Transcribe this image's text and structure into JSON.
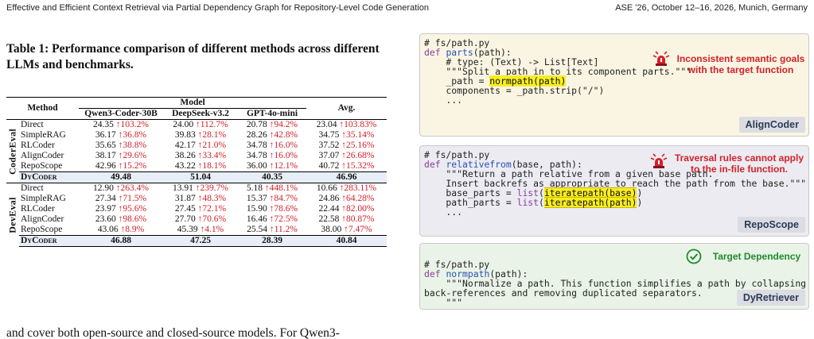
{
  "running_head": {
    "left": "Effective and Efficient Context Retrieval via Partial Dependency Graph for Repository-Level Code Generation",
    "right": "ASE '26, October 12–16, 2026, Munich, Germany"
  },
  "table": {
    "caption": "Table 1: Performance comparison of different methods across different LLMs and benchmarks.",
    "col_method": "Method",
    "col_model": "Model",
    "col_avg": "Avg.",
    "models": [
      "Qwen3-Coder-30B",
      "DeepSeek-v3.2",
      "GPT-4o-mini"
    ],
    "groups": [
      {
        "name": "CoderEval",
        "rows": [
          {
            "method": "Direct",
            "cells": [
              [
                "24.35",
                "↑103.2%"
              ],
              [
                "24.00",
                "↑112.7%"
              ],
              [
                "20.78",
                "↑94.2%"
              ],
              [
                "23.04",
                "↑103.83%"
              ]
            ]
          },
          {
            "method": "SimpleRAG",
            "cells": [
              [
                "36.17",
                "↑36.8%"
              ],
              [
                "39.83",
                "↑28.1%"
              ],
              [
                "28.26",
                "↑42.8%"
              ],
              [
                "34.75",
                "↑35.14%"
              ]
            ]
          },
          {
            "method": "RLCoder",
            "cells": [
              [
                "35.65",
                "↑38.8%"
              ],
              [
                "42.17",
                "↑21.0%"
              ],
              [
                "34.78",
                "↑16.0%"
              ],
              [
                "37.52",
                "↑25.16%"
              ]
            ]
          },
          {
            "method": "AlignCoder",
            "cells": [
              [
                "38.17",
                "↑29.6%"
              ],
              [
                "38.26",
                "↑33.4%"
              ],
              [
                "34.78",
                "↑16.0%"
              ],
              [
                "37.07",
                "↑26.68%"
              ]
            ]
          },
          {
            "method": "RepoScope",
            "cells": [
              [
                "42.96",
                "↑15.2%"
              ],
              [
                "43.22",
                "↑18.1%"
              ],
              [
                "36.00",
                "↑12.1%"
              ],
              [
                "40.72",
                "↑15.32%"
              ]
            ]
          }
        ],
        "dy": {
          "method": "DyCoder",
          "values": [
            "49.48",
            "51.04",
            "40.35",
            "46.96"
          ]
        }
      },
      {
        "name": "DevEval",
        "rows": [
          {
            "method": "Direct",
            "cells": [
              [
                "12.90",
                "↑263.4%"
              ],
              [
                "13.91",
                "↑239.7%"
              ],
              [
                "5.18",
                "↑448.1%"
              ],
              [
                "10.66",
                "↑283.11%"
              ]
            ]
          },
          {
            "method": "SimpleRAG",
            "cells": [
              [
                "27.34",
                "↑71.5%"
              ],
              [
                "31.87",
                "↑48.3%"
              ],
              [
                "15.37",
                "↑84.7%"
              ],
              [
                "24.86",
                "↑64.28%"
              ]
            ]
          },
          {
            "method": "RLCoder",
            "cells": [
              [
                "23.97",
                "↑95.6%"
              ],
              [
                "27.45",
                "↑72.1%"
              ],
              [
                "15.90",
                "↑78.6%"
              ],
              [
                "22.44",
                "↑82.00%"
              ]
            ]
          },
          {
            "method": "AlignCoder",
            "cells": [
              [
                "23.60",
                "↑98.6%"
              ],
              [
                "27.70",
                "↑70.6%"
              ],
              [
                "16.46",
                "↑72.5%"
              ],
              [
                "22.58",
                "↑80.87%"
              ]
            ]
          },
          {
            "method": "RepoScope",
            "cells": [
              [
                "43.06",
                "↑8.9%"
              ],
              [
                "45.39",
                "↑4.1%"
              ],
              [
                "25.54",
                "↑11.2%"
              ],
              [
                "38.00",
                "↑7.47%"
              ]
            ]
          }
        ],
        "dy": {
          "method": "DyCoder",
          "values": [
            "46.88",
            "47.25",
            "28.39",
            "40.84"
          ]
        }
      }
    ]
  },
  "body_text": "and cover both open-source and closed-source models. For Qwen3-",
  "figure": {
    "aligncoder": {
      "code": {
        "l1": "# fs/path.py",
        "l2_kw": "def",
        "l2_fn": "parts",
        "l2_rest": "(path):",
        "l3": "    # type: (Text) -> List[Text]",
        "l4": "    \"\"\"Split a path in to its component parts.\"\"\"",
        "l5_pre": "    _path = ",
        "l5_hl": "normpath(path)",
        "l6": "    components = _path.strip(\"/\")",
        "l7": "    ..."
      },
      "note_line1": "Inconsistent semantic goals",
      "note_line2": "with the target function",
      "tag": "AlignCoder",
      "icon": "siren-icon",
      "note_color": "#d3212a"
    },
    "reposcope": {
      "code": {
        "l1": "# fs/path.py",
        "l2_kw": "def",
        "l2_fn": "relativefrom",
        "l2_rest": "(base, path):",
        "l3": "    \"\"\"Return a path relative from a given base path.",
        "l4": "    Insert backrefs as appropriate to reach the path from the base.\"\"\"",
        "l5_pre": "    base_parts = ",
        "l5_kw": "list",
        "l5_open": "(",
        "l5_hl": "iteratepath(base)",
        "l5_close": ")",
        "l6_pre": "    path_parts = ",
        "l6_kw": "list",
        "l6_open": "(",
        "l6_hl": "iteratepath(path)",
        "l6_close": ")",
        "l7": "    ..."
      },
      "note_line1": "Traversal rules cannot apply",
      "note_line2": "to the in-file function.",
      "tag": "RepoScope",
      "icon": "siren-icon",
      "note_color": "#d3212a"
    },
    "dyretriever": {
      "code": {
        "l1": "# fs/path.py",
        "l2_kw": "def",
        "l2_fn": "normpath",
        "l2_rest": "(path):",
        "l3": "    \"\"\"Normalize a path. This function simplifies a path by collapsing",
        "l4": "back-references and removing duplicated separators.",
        "l5": "    \"\"\""
      },
      "note": "Target Dependency",
      "tag": "DyRetriever",
      "icon": "check-circle-icon",
      "note_color": "#1f8a2f"
    }
  }
}
